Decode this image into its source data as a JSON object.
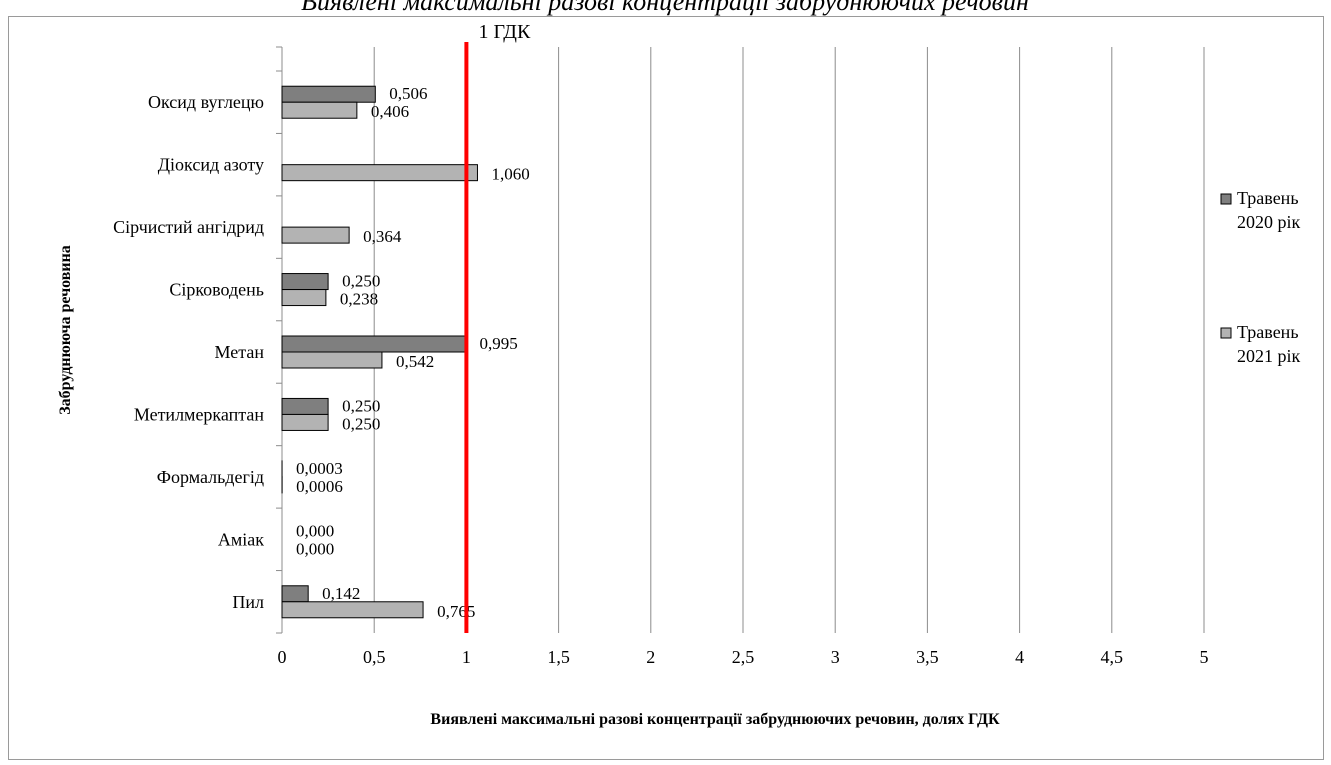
{
  "header": {
    "title_fragment": "Виявлені максимальні разові концентрації забруднюючих речовин"
  },
  "chart_data": {
    "type": "bar",
    "orientation": "horizontal",
    "categories": [
      "Оксид вуглецю",
      "Діоксид азоту",
      "Сірчистий ангідрид",
      "Сірководень",
      "Метан",
      "Метилмеркаптан",
      "Формальдегід",
      "Аміак",
      "Пил"
    ],
    "series": [
      {
        "name": "Травень 2020 рік",
        "color": "#7f7f7f",
        "values": [
          0.506,
          null,
          null,
          0.25,
          0.995,
          0.25,
          0.0003,
          0.0,
          0.142
        ],
        "labels": [
          "0,506",
          "",
          "",
          "0,250",
          "0,995",
          "0,250",
          "0,0003",
          "0,000",
          "0,142"
        ]
      },
      {
        "name": "Травень 2021 рік",
        "color": "#b3b3b3",
        "values": [
          0.406,
          1.06,
          0.364,
          0.238,
          0.542,
          0.25,
          0.0006,
          0.0,
          0.765
        ],
        "labels": [
          "0,406",
          "1,060",
          "0,364",
          "0,238",
          "0,542",
          "0,250",
          "0,0006",
          "0,000",
          "0,765"
        ]
      }
    ],
    "xlim": [
      0,
      5
    ],
    "xticks": [
      0,
      0.5,
      1,
      1.5,
      2,
      2.5,
      3,
      3.5,
      4,
      4.5,
      5
    ],
    "xtick_labels": [
      "0",
      "0,5",
      "1",
      "1,5",
      "2",
      "2,5",
      "3",
      "3,5",
      "4",
      "4,5",
      "5"
    ],
    "xlabel": "Виявлені максимальні  разові концентрації забруднюючих речовин, долях ГДК",
    "ylabel": "Забруднююча речовина",
    "reference_line": {
      "value": 1,
      "label": "1 ГДК",
      "color": "#ff0000"
    },
    "legend": {
      "position": "right",
      "entries": [
        [
          "Травень",
          "2020 рік"
        ],
        [
          "Травень",
          "2021 рік"
        ]
      ]
    },
    "grid": "vertical"
  }
}
